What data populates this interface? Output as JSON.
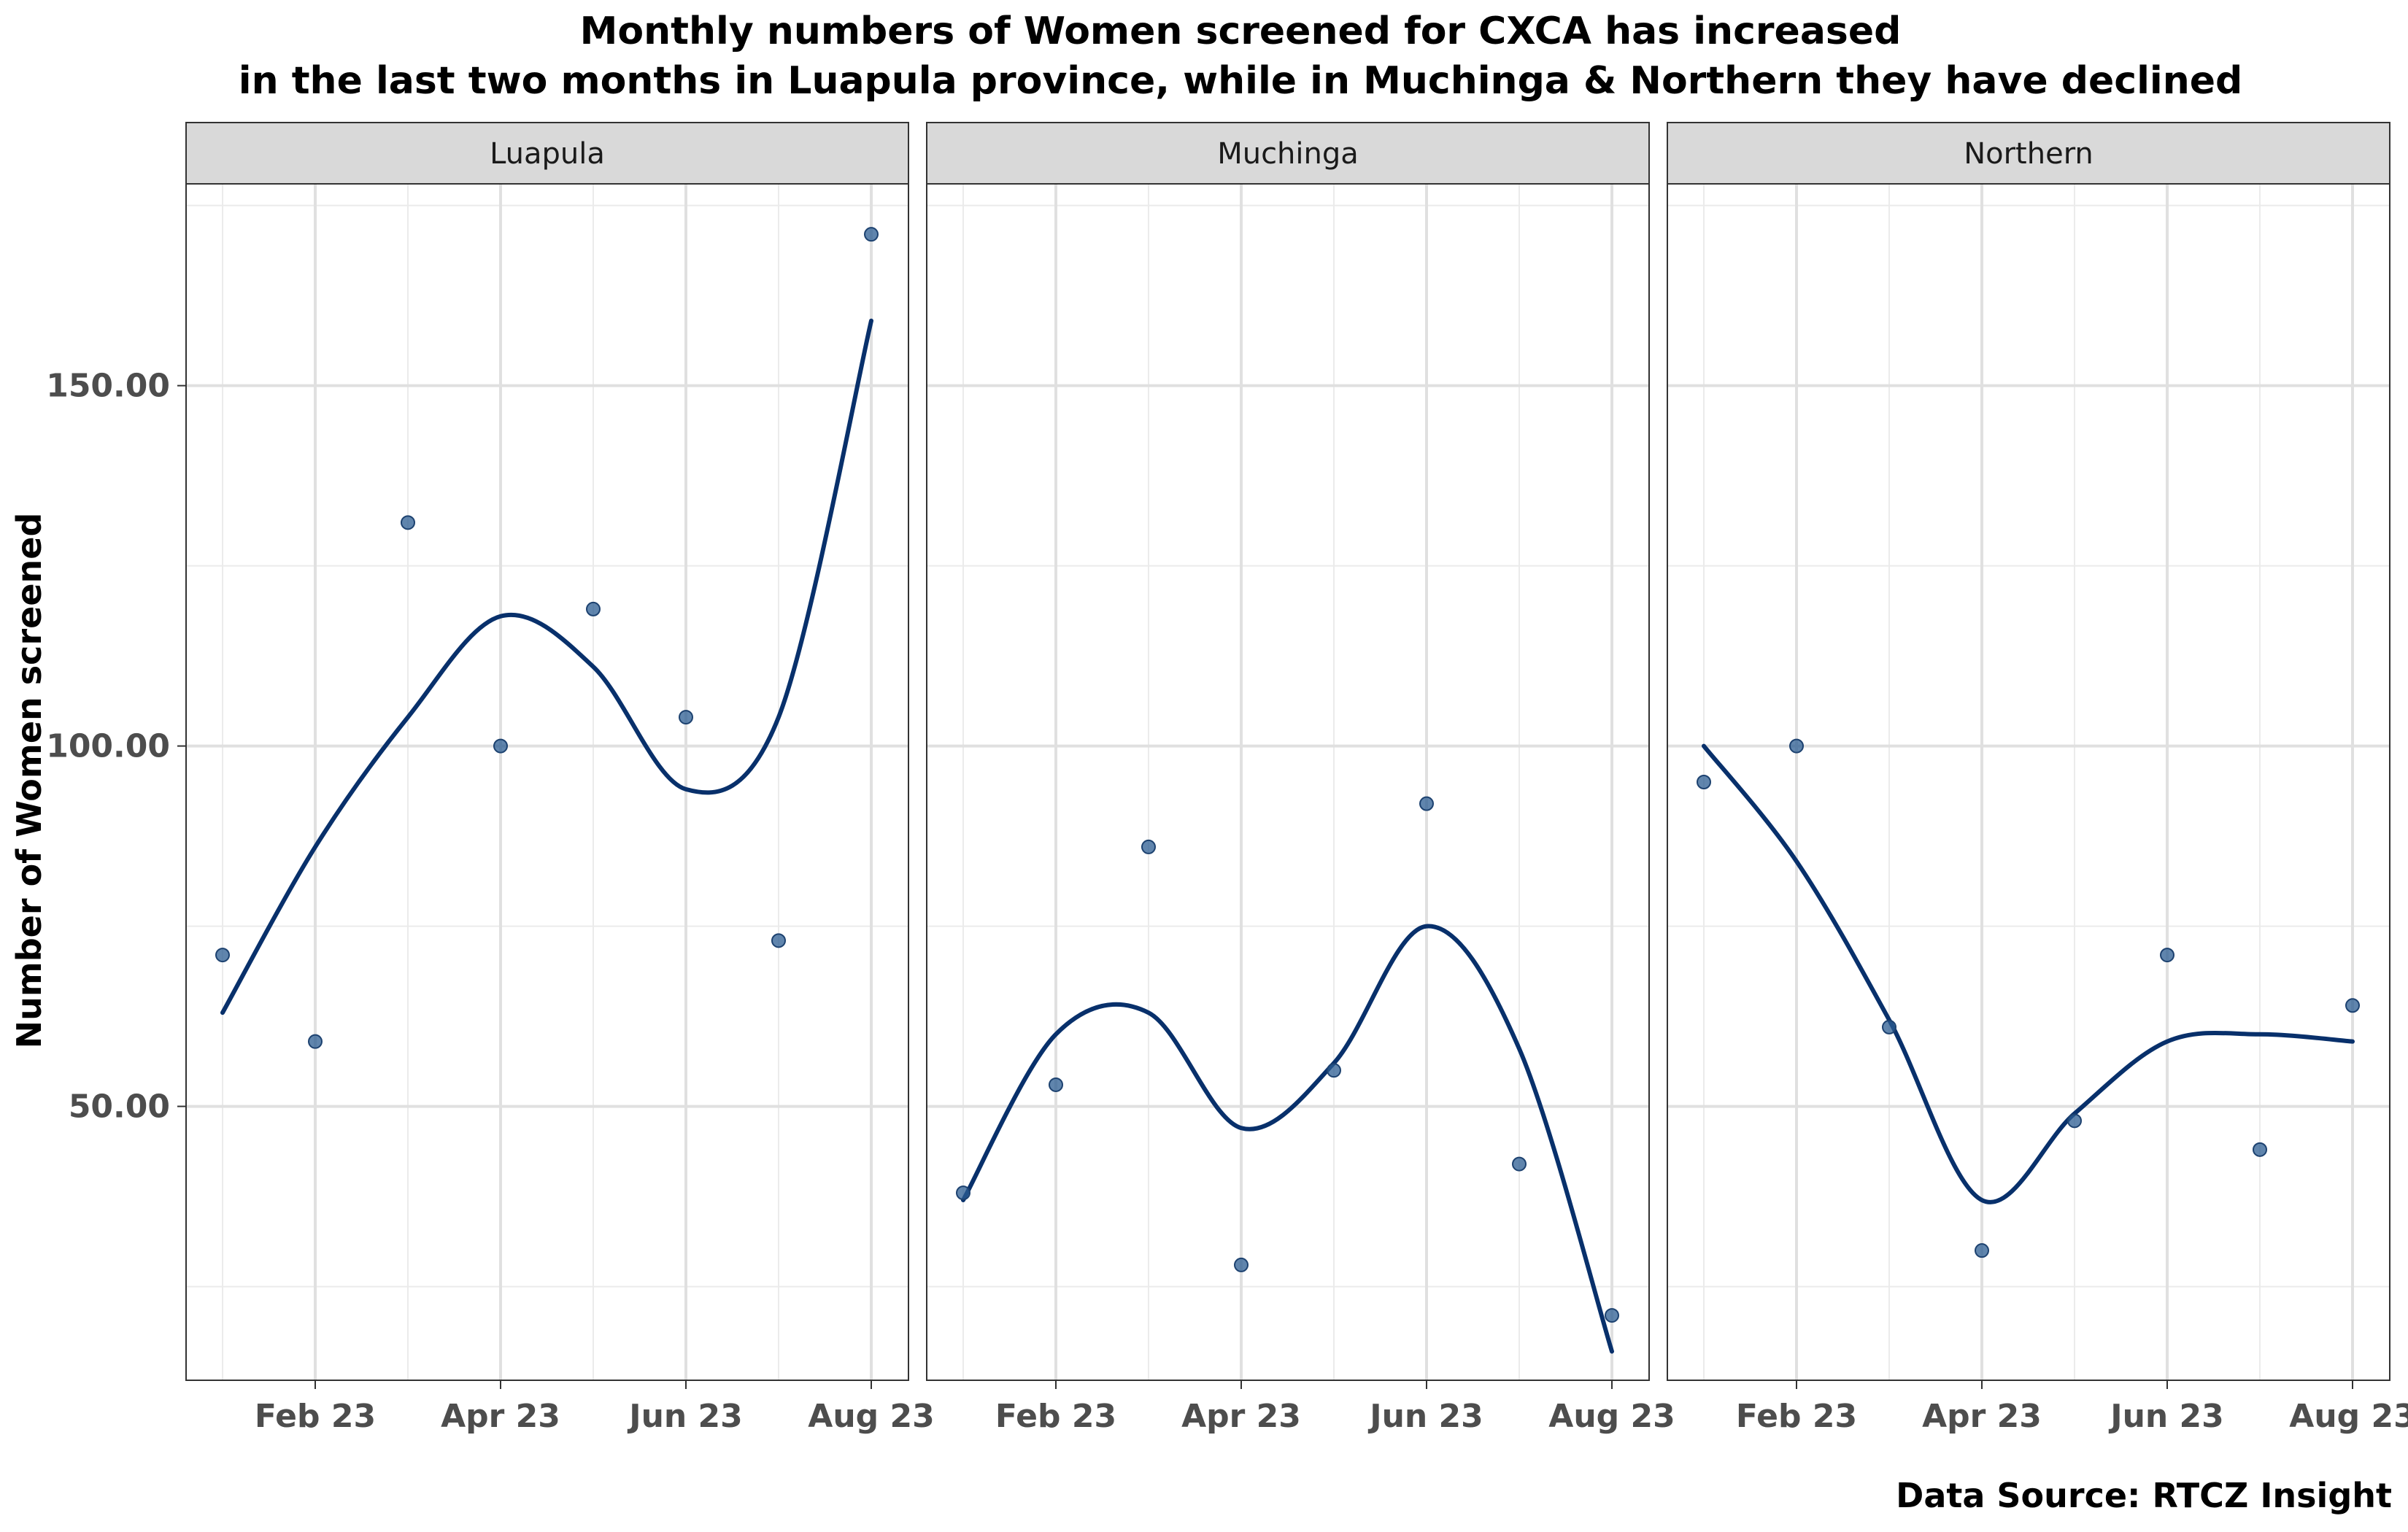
{
  "chart_data": {
    "type": "scatter",
    "title_lines": [
      "Monthly numbers of Women screened for CXCA has increased",
      "in the last two months in Luapula province, while in Muchinga & Northern they have declined"
    ],
    "ylabel": "Number of Women screened",
    "caption": "Data Source: RTCZ Insight",
    "ylim": [
      12,
      178
    ],
    "y_ticks": [
      50,
      100,
      150
    ],
    "y_tick_labels": [
      "50.00",
      "100.00",
      "150.00"
    ],
    "x_months": [
      "Jan 23",
      "Feb 23",
      "Mar 23",
      "Apr 23",
      "May 23",
      "Jun 23",
      "Jul 23",
      "Aug 23"
    ],
    "x_ticks": [
      "Feb 23",
      "Apr 23",
      "Jun 23",
      "Aug 23"
    ],
    "grid": true,
    "point_color": "#2b5c92",
    "smooth_color": "#08306b",
    "panels": [
      {
        "name": "Luapula",
        "values": [
          71,
          59,
          131,
          100,
          119,
          104,
          73,
          171
        ],
        "smooth": [
          63,
          86,
          104,
          118,
          111,
          94,
          104,
          159
        ]
      },
      {
        "name": "Muchinga",
        "values": [
          38,
          53,
          86,
          28,
          55,
          92,
          42,
          21
        ],
        "smooth": [
          37,
          60,
          63,
          47,
          56,
          75,
          58,
          16
        ]
      },
      {
        "name": "Northern",
        "values": [
          95,
          100,
          61,
          30,
          48,
          71,
          44,
          64
        ],
        "smooth": [
          100,
          84,
          62,
          37,
          49,
          59,
          60,
          59
        ]
      }
    ]
  }
}
